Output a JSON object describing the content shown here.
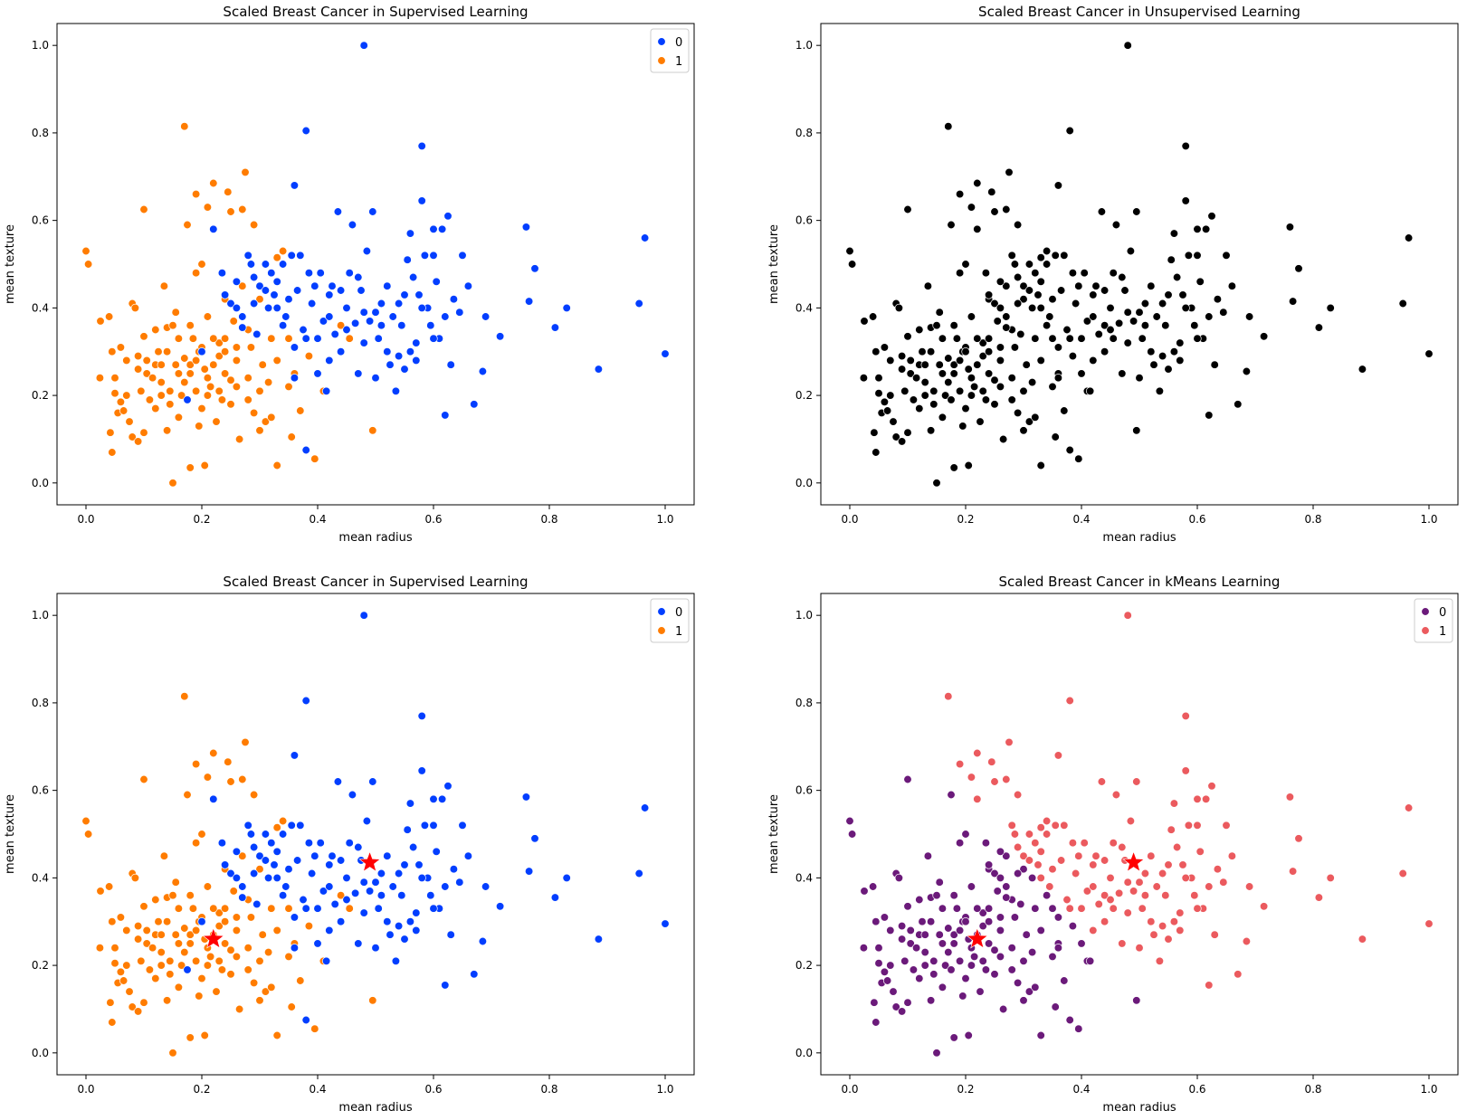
{
  "chart_data": [
    {
      "type": "scatter",
      "title": "Scaled Breast Cancer in Supervised Learning",
      "xlabel": "mean radius",
      "ylabel": "mean texture",
      "xlim": [
        -0.05,
        1.05
      ],
      "ylim": [
        -0.05,
        1.05
      ],
      "xticks": [
        "0.0",
        "0.2",
        "0.4",
        "0.6",
        "0.8",
        "1.0"
      ],
      "yticks": [
        "0.0",
        "0.2",
        "0.4",
        "0.6",
        "0.8",
        "1.0"
      ],
      "hue": "target",
      "legend": {
        "position": "upper-right",
        "entries": [
          {
            "label": "0",
            "color": "#023eff"
          },
          {
            "label": "1",
            "color": "#ff7c00"
          }
        ]
      },
      "centers": []
    },
    {
      "type": "scatter",
      "title": "Scaled Breast Cancer in Unsupervised Learning",
      "xlabel": "mean radius",
      "ylabel": "mean texture",
      "xlim": [
        -0.05,
        1.05
      ],
      "ylim": [
        -0.05,
        1.05
      ],
      "xticks": [
        "0.0",
        "0.2",
        "0.4",
        "0.6",
        "0.8",
        "1.0"
      ],
      "yticks": [
        "0.0",
        "0.2",
        "0.4",
        "0.6",
        "0.8",
        "1.0"
      ],
      "hue": "none",
      "point_color": "#000000",
      "centers": []
    },
    {
      "type": "scatter",
      "title": "Scaled Breast Cancer in Supervised Learning",
      "xlabel": "mean radius",
      "ylabel": "mean texture",
      "xlim": [
        -0.05,
        1.05
      ],
      "ylim": [
        -0.05,
        1.05
      ],
      "xticks": [
        "0.0",
        "0.2",
        "0.4",
        "0.6",
        "0.8",
        "1.0"
      ],
      "yticks": [
        "0.0",
        "0.2",
        "0.4",
        "0.6",
        "0.8",
        "1.0"
      ],
      "hue": "target",
      "legend": {
        "position": "upper-right",
        "entries": [
          {
            "label": "0",
            "color": "#023eff"
          },
          {
            "label": "1",
            "color": "#ff7c00"
          }
        ]
      },
      "centers": [
        {
          "x": 0.22,
          "y": 0.26
        },
        {
          "x": 0.49,
          "y": 0.435
        }
      ]
    },
    {
      "type": "scatter",
      "title": "Scaled Breast Cancer in kMeans Learning",
      "xlabel": "mean radius",
      "ylabel": "mean texture",
      "xlim": [
        -0.05,
        1.05
      ],
      "ylim": [
        -0.05,
        1.05
      ],
      "xticks": [
        "0.0",
        "0.2",
        "0.4",
        "0.6",
        "0.8",
        "1.0"
      ],
      "yticks": [
        "0.0",
        "0.2",
        "0.4",
        "0.6",
        "0.8",
        "1.0"
      ],
      "hue": "cluster",
      "legend": {
        "position": "upper-right",
        "entries": [
          {
            "label": "0",
            "color": "#6b1a7a"
          },
          {
            "label": "1",
            "color": "#eb5a5e"
          }
        ]
      },
      "centers": [
        {
          "x": 0.22,
          "y": 0.26
        },
        {
          "x": 0.49,
          "y": 0.435
        }
      ]
    }
  ],
  "points": [
    [
      0.0,
      0.53,
      1
    ],
    [
      0.004,
      0.5,
      1
    ],
    [
      0.025,
      0.37,
      1
    ],
    [
      0.024,
      0.24,
      1
    ],
    [
      0.04,
      0.38,
      1
    ],
    [
      0.045,
      0.3,
      1
    ],
    [
      0.042,
      0.115,
      1
    ],
    [
      0.045,
      0.07,
      1
    ],
    [
      0.05,
      0.24,
      1
    ],
    [
      0.05,
      0.205,
      1
    ],
    [
      0.06,
      0.185,
      1
    ],
    [
      0.055,
      0.16,
      1
    ],
    [
      0.065,
      0.165,
      1
    ],
    [
      0.06,
      0.31,
      1
    ],
    [
      0.07,
      0.2,
      1
    ],
    [
      0.075,
      0.14,
      1
    ],
    [
      0.08,
      0.105,
      1
    ],
    [
      0.08,
      0.41,
      1
    ],
    [
      0.085,
      0.4,
      1
    ],
    [
      0.09,
      0.29,
      1
    ],
    [
      0.09,
      0.095,
      1
    ],
    [
      0.095,
      0.21,
      1
    ],
    [
      0.1,
      0.625,
      1
    ],
    [
      0.1,
      0.115,
      1
    ],
    [
      0.1,
      0.335,
      1
    ],
    [
      0.105,
      0.28,
      1
    ],
    [
      0.105,
      0.25,
      1
    ],
    [
      0.11,
      0.19,
      1
    ],
    [
      0.115,
      0.24,
      1
    ],
    [
      0.12,
      0.27,
      1
    ],
    [
      0.12,
      0.17,
      1
    ],
    [
      0.125,
      0.3,
      1
    ],
    [
      0.13,
      0.2,
      1
    ],
    [
      0.13,
      0.23,
      1
    ],
    [
      0.135,
      0.45,
      1
    ],
    [
      0.14,
      0.3,
      1
    ],
    [
      0.14,
      0.355,
      1
    ],
    [
      0.145,
      0.18,
      1
    ],
    [
      0.15,
      0.0,
      1
    ],
    [
      0.15,
      0.36,
      1
    ],
    [
      0.155,
      0.39,
      1
    ],
    [
      0.16,
      0.25,
      1
    ],
    [
      0.16,
      0.15,
      1
    ],
    [
      0.165,
      0.2,
      1
    ],
    [
      0.17,
      0.815,
      1
    ],
    [
      0.17,
      0.285,
      1
    ],
    [
      0.175,
      0.59,
      1
    ],
    [
      0.18,
      0.035,
      1
    ],
    [
      0.18,
      0.27,
      1
    ],
    [
      0.185,
      0.33,
      1
    ],
    [
      0.19,
      0.66,
      1
    ],
    [
      0.19,
      0.48,
      1
    ],
    [
      0.19,
      0.21,
      1
    ],
    [
      0.195,
      0.3,
      1
    ],
    [
      0.2,
      0.17,
      1
    ],
    [
      0.2,
      0.5,
      1
    ],
    [
      0.205,
      0.26,
      1
    ],
    [
      0.205,
      0.04,
      1
    ],
    [
      0.21,
      0.63,
      1
    ],
    [
      0.21,
      0.38,
      1
    ],
    [
      0.215,
      0.22,
      1
    ],
    [
      0.22,
      0.685,
      1
    ],
    [
      0.22,
      0.27,
      1
    ],
    [
      0.225,
      0.14,
      1
    ],
    [
      0.23,
      0.32,
      1
    ],
    [
      0.235,
      0.19,
      1
    ],
    [
      0.24,
      0.42,
      1
    ],
    [
      0.24,
      0.25,
      1
    ],
    [
      0.245,
      0.665,
      1
    ],
    [
      0.25,
      0.62,
      1
    ],
    [
      0.25,
      0.235,
      1
    ],
    [
      0.255,
      0.37,
      1
    ],
    [
      0.26,
      0.28,
      1
    ],
    [
      0.265,
      0.1,
      1
    ],
    [
      0.27,
      0.625,
      1
    ],
    [
      0.275,
      0.71,
      1
    ],
    [
      0.28,
      0.24,
      1
    ],
    [
      0.285,
      0.31,
      1
    ],
    [
      0.29,
      0.16,
      1
    ],
    [
      0.29,
      0.59,
      1
    ],
    [
      0.3,
      0.21,
      1
    ],
    [
      0.305,
      0.27,
      1
    ],
    [
      0.31,
      0.14,
      1
    ],
    [
      0.315,
      0.23,
      1
    ],
    [
      0.33,
      0.515,
      1
    ],
    [
      0.33,
      0.04,
      1
    ],
    [
      0.34,
      0.53,
      1
    ],
    [
      0.35,
      0.22,
      1
    ],
    [
      0.355,
      0.105,
      1
    ],
    [
      0.37,
      0.165,
      1
    ],
    [
      0.385,
      0.29,
      1
    ],
    [
      0.395,
      0.055,
      1
    ],
    [
      0.41,
      0.21,
      1
    ],
    [
      0.44,
      0.36,
      1
    ],
    [
      0.455,
      0.33,
      1
    ],
    [
      0.495,
      0.12,
      1
    ],
    [
      0.17,
      0.23,
      1
    ],
    [
      0.2,
      0.31,
      1
    ],
    [
      0.18,
      0.25,
      1
    ],
    [
      0.24,
      0.33,
      1
    ],
    [
      0.21,
      0.2,
      1
    ],
    [
      0.23,
      0.29,
      1
    ],
    [
      0.26,
      0.22,
      1
    ],
    [
      0.28,
      0.35,
      1
    ],
    [
      0.155,
      0.27,
      1
    ],
    [
      0.12,
      0.35,
      1
    ],
    [
      0.33,
      0.28,
      1
    ],
    [
      0.36,
      0.25,
      1
    ],
    [
      0.32,
      0.15,
      1
    ],
    [
      0.14,
      0.12,
      1
    ],
    [
      0.195,
      0.13,
      1
    ],
    [
      0.25,
      0.18,
      1
    ],
    [
      0.3,
      0.12,
      1
    ],
    [
      0.27,
      0.45,
      1
    ],
    [
      0.22,
      0.33,
      1
    ],
    [
      0.16,
      0.33,
      1
    ],
    [
      0.09,
      0.26,
      1
    ],
    [
      0.07,
      0.28,
      1
    ],
    [
      0.35,
      0.33,
      1
    ],
    [
      0.3,
      0.42,
      1
    ],
    [
      0.21,
      0.24,
      1
    ],
    [
      0.18,
      0.36,
      1
    ],
    [
      0.23,
      0.21,
      1
    ],
    [
      0.26,
      0.31,
      1
    ],
    [
      0.19,
      0.28,
      1
    ],
    [
      0.28,
      0.19,
      1
    ],
    [
      0.32,
      0.33,
      1
    ],
    [
      0.13,
      0.27,
      1
    ],
    [
      0.145,
      0.21,
      1
    ],
    [
      0.24,
      0.3,
      1
    ],
    [
      0.175,
      0.19,
      0
    ],
    [
      0.2,
      0.3,
      0
    ],
    [
      0.22,
      0.58,
      0
    ],
    [
      0.235,
      0.48,
      0
    ],
    [
      0.24,
      0.43,
      0
    ],
    [
      0.25,
      0.41,
      0
    ],
    [
      0.26,
      0.4,
      0
    ],
    [
      0.27,
      0.355,
      0
    ],
    [
      0.28,
      0.52,
      0
    ],
    [
      0.285,
      0.5,
      0
    ],
    [
      0.29,
      0.47,
      0
    ],
    [
      0.295,
      0.34,
      0
    ],
    [
      0.3,
      0.45,
      0
    ],
    [
      0.31,
      0.5,
      0
    ],
    [
      0.315,
      0.4,
      0
    ],
    [
      0.32,
      0.48,
      0
    ],
    [
      0.325,
      0.43,
      0
    ],
    [
      0.33,
      0.46,
      0
    ],
    [
      0.34,
      0.5,
      0
    ],
    [
      0.345,
      0.38,
      0
    ],
    [
      0.35,
      0.42,
      0
    ],
    [
      0.355,
      0.52,
      0
    ],
    [
      0.36,
      0.68,
      0
    ],
    [
      0.365,
      0.44,
      0
    ],
    [
      0.37,
      0.52,
      0
    ],
    [
      0.375,
      0.35,
      0
    ],
    [
      0.38,
      0.805,
      0
    ],
    [
      0.38,
      0.075,
      0
    ],
    [
      0.385,
      0.48,
      0
    ],
    [
      0.39,
      0.41,
      0
    ],
    [
      0.395,
      0.45,
      0
    ],
    [
      0.4,
      0.33,
      0
    ],
    [
      0.405,
      0.48,
      0
    ],
    [
      0.41,
      0.37,
      0
    ],
    [
      0.415,
      0.21,
      0
    ],
    [
      0.42,
      0.38,
      0
    ],
    [
      0.425,
      0.45,
      0
    ],
    [
      0.43,
      0.34,
      0
    ],
    [
      0.435,
      0.62,
      0
    ],
    [
      0.44,
      0.44,
      0
    ],
    [
      0.45,
      0.4,
      0
    ],
    [
      0.455,
      0.48,
      0
    ],
    [
      0.46,
      0.59,
      0
    ],
    [
      0.465,
      0.365,
      0
    ],
    [
      0.47,
      0.25,
      0
    ],
    [
      0.475,
      0.44,
      0
    ],
    [
      0.48,
      1.0,
      0
    ],
    [
      0.485,
      0.53,
      0
    ],
    [
      0.49,
      0.37,
      0
    ],
    [
      0.495,
      0.62,
      0
    ],
    [
      0.5,
      0.39,
      0
    ],
    [
      0.505,
      0.33,
      0
    ],
    [
      0.51,
      0.41,
      0
    ],
    [
      0.52,
      0.3,
      0
    ],
    [
      0.525,
      0.27,
      0
    ],
    [
      0.53,
      0.38,
      0
    ],
    [
      0.535,
      0.21,
      0
    ],
    [
      0.54,
      0.41,
      0
    ],
    [
      0.545,
      0.36,
      0
    ],
    [
      0.55,
      0.26,
      0
    ],
    [
      0.555,
      0.51,
      0
    ],
    [
      0.56,
      0.57,
      0
    ],
    [
      0.565,
      0.47,
      0
    ],
    [
      0.57,
      0.32,
      0
    ],
    [
      0.575,
      0.43,
      0
    ],
    [
      0.58,
      0.77,
      0
    ],
    [
      0.58,
      0.645,
      0
    ],
    [
      0.585,
      0.52,
      0
    ],
    [
      0.59,
      0.4,
      0
    ],
    [
      0.595,
      0.36,
      0
    ],
    [
      0.6,
      0.52,
      0
    ],
    [
      0.605,
      0.46,
      0
    ],
    [
      0.61,
      0.33,
      0
    ],
    [
      0.615,
      0.58,
      0
    ],
    [
      0.62,
      0.155,
      0
    ],
    [
      0.625,
      0.61,
      0
    ],
    [
      0.63,
      0.27,
      0
    ],
    [
      0.635,
      0.42,
      0
    ],
    [
      0.645,
      0.39,
      0
    ],
    [
      0.65,
      0.52,
      0
    ],
    [
      0.66,
      0.45,
      0
    ],
    [
      0.67,
      0.18,
      0
    ],
    [
      0.685,
      0.255,
      0
    ],
    [
      0.69,
      0.38,
      0
    ],
    [
      0.715,
      0.335,
      0
    ],
    [
      0.76,
      0.585,
      0
    ],
    [
      0.765,
      0.415,
      0
    ],
    [
      0.775,
      0.49,
      0
    ],
    [
      0.81,
      0.355,
      0
    ],
    [
      0.83,
      0.4,
      0
    ],
    [
      0.885,
      0.26,
      0
    ],
    [
      0.955,
      0.41,
      0
    ],
    [
      0.965,
      0.56,
      0
    ],
    [
      1.0,
      0.295,
      0
    ],
    [
      0.56,
      0.3,
      0
    ],
    [
      0.54,
      0.29,
      0
    ],
    [
      0.5,
      0.24,
      0
    ],
    [
      0.57,
      0.28,
      0
    ],
    [
      0.6,
      0.33,
      0
    ],
    [
      0.45,
      0.35,
      0
    ],
    [
      0.42,
      0.28,
      0
    ],
    [
      0.38,
      0.33,
      0
    ],
    [
      0.36,
      0.31,
      0
    ],
    [
      0.34,
      0.36,
      0
    ],
    [
      0.33,
      0.4,
      0
    ],
    [
      0.31,
      0.44,
      0
    ],
    [
      0.29,
      0.41,
      0
    ],
    [
      0.27,
      0.38,
      0
    ],
    [
      0.52,
      0.45,
      0
    ],
    [
      0.47,
      0.47,
      0
    ],
    [
      0.44,
      0.3,
      0
    ],
    [
      0.48,
      0.32,
      0
    ],
    [
      0.51,
      0.36,
      0
    ],
    [
      0.55,
      0.43,
      0
    ],
    [
      0.58,
      0.4,
      0
    ],
    [
      0.62,
      0.38,
      0
    ],
    [
      0.4,
      0.25,
      0
    ],
    [
      0.36,
      0.24,
      0
    ],
    [
      0.42,
      0.43,
      0
    ],
    [
      0.6,
      0.58,
      0
    ],
    [
      0.26,
      0.46,
      0
    ],
    [
      0.48,
      0.39,
      0
    ]
  ]
}
